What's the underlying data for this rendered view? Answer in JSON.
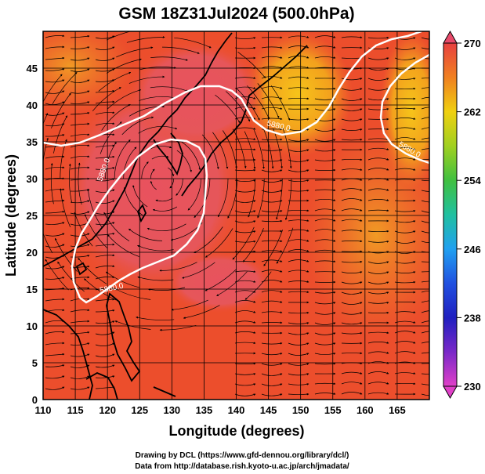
{
  "title": "GSM 18Z31Jul2024 (500.0hPa)",
  "xlabel": "Longitude (degrees)",
  "ylabel": "Latitude  (degrees)",
  "credits": [
    "Drawing by DCL (https://www.gfd-dennou.org/library/dcl/)",
    "Data from http://database.rish.kyoto-u.ac.jp/arch/jmadata/"
  ],
  "chart_data": {
    "type": "heatmap",
    "title": "GSM 18Z31Jul2024 (500.0hPa)",
    "xlabel": "Longitude (degrees)",
    "ylabel": "Latitude  (degrees)",
    "xlim": [
      110,
      170
    ],
    "ylim": [
      0,
      50
    ],
    "x_ticks": [
      110,
      115,
      120,
      125,
      130,
      135,
      140,
      145,
      150,
      155,
      160,
      165
    ],
    "y_ticks": [
      0,
      5,
      10,
      15,
      20,
      25,
      30,
      35,
      40,
      45
    ],
    "colorbar": {
      "min": 230,
      "max": 270,
      "ticks": [
        230,
        238,
        246,
        254,
        262,
        270
      ]
    },
    "contour_levels": [
      {
        "label": "5880.0",
        "lon": 124,
        "lat": 31.5
      },
      {
        "label": "5880.0",
        "lon": 120,
        "lat": 14.3
      },
      {
        "label": "5880.0",
        "lon": 150,
        "lat": 38.3
      },
      {
        "label": "5880.0",
        "lon": 163,
        "lat": 36
      }
    ],
    "grid": true,
    "streamlines": true
  },
  "colors": {
    "warm_fill": "#ec4e2c",
    "hot_fill": "#e6525a",
    "cool_fill": "#f28a22",
    "contour": "#ffffff",
    "coast": "#000000"
  }
}
